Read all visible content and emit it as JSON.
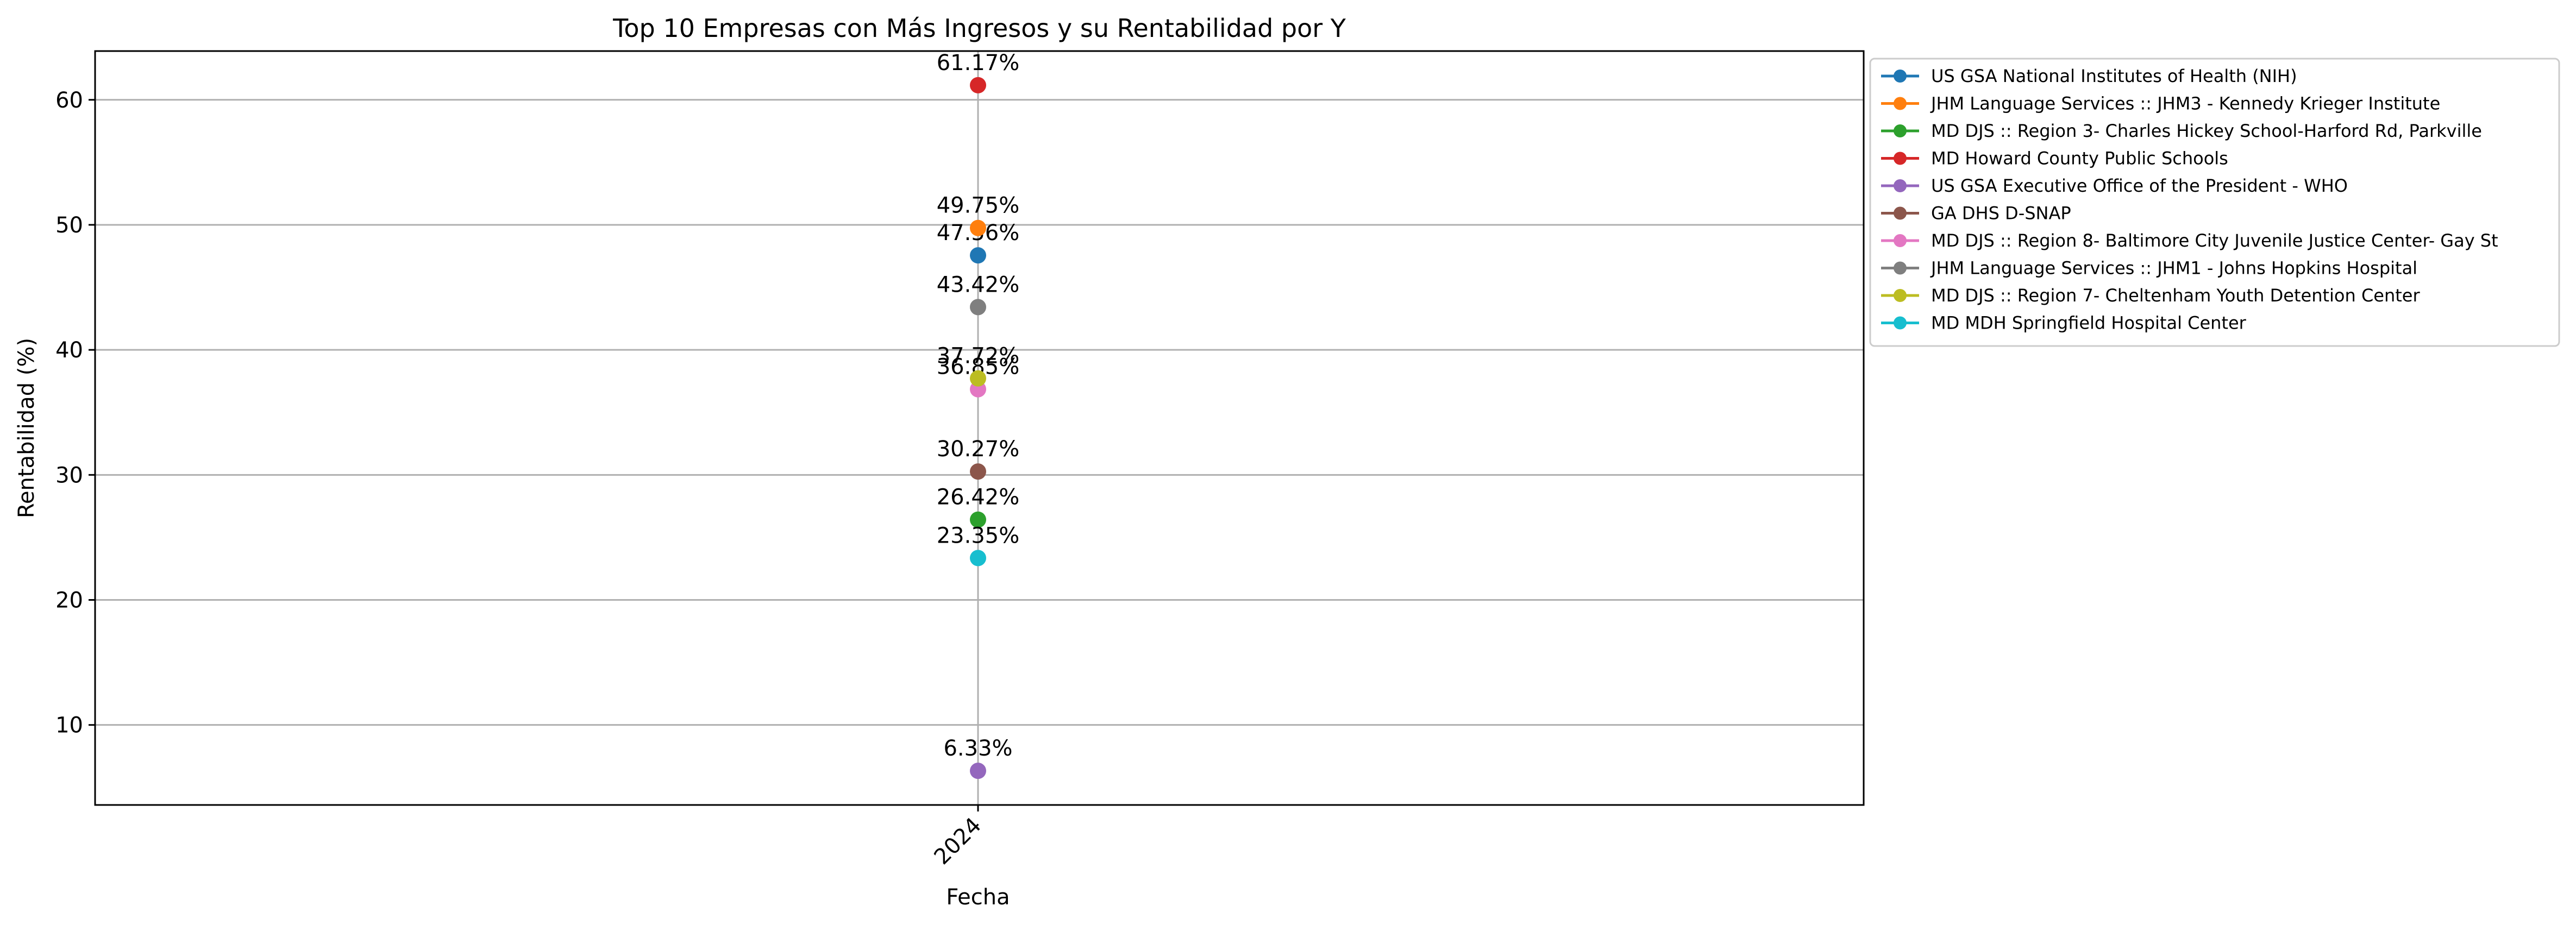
{
  "chart_data": {
    "type": "line",
    "title": "Top 10 Empresas con Más Ingresos y su Rentabilidad por Y",
    "xlabel": "Fecha",
    "ylabel": "Rentabilidad (%)",
    "categories": [
      "2024"
    ],
    "ylim": [
      3.6,
      63.9
    ],
    "yticks": [
      10,
      20,
      30,
      40,
      50,
      60
    ],
    "grid": true,
    "legend_position": "outside-top-right",
    "series": [
      {
        "name": "US GSA National Institutes of Health (NIH)",
        "values": [
          47.56
        ],
        "label": "47.56%",
        "color": "#1f77b4"
      },
      {
        "name": "JHM Language Services :: JHM3 - Kennedy Krieger Institute",
        "values": [
          49.75
        ],
        "label": "49.75%",
        "color": "#ff7f0e"
      },
      {
        "name": "MD DJS  :: Region 3- Charles Hickey School-Harford Rd, Parkville",
        "values": [
          26.42
        ],
        "label": "26.42%",
        "color": "#2ca02c"
      },
      {
        "name": "MD Howard County Public Schools",
        "values": [
          61.17
        ],
        "label": "61.17%",
        "color": "#d62728"
      },
      {
        "name": "US GSA Executive Office of the President - WHO",
        "values": [
          6.33
        ],
        "label": "6.33%",
        "color": "#9467bd"
      },
      {
        "name": "GA DHS D-SNAP",
        "values": [
          30.27
        ],
        "label": "30.27%",
        "color": "#8c564b"
      },
      {
        "name": "MD DJS  :: Region 8- Baltimore City Juvenile Justice Center- Gay St",
        "values": [
          36.85
        ],
        "label": "36.85%",
        "color": "#e377c2"
      },
      {
        "name": "JHM Language Services :: JHM1 - Johns Hopkins Hospital",
        "values": [
          43.42
        ],
        "label": "43.42%",
        "color": "#7f7f7f"
      },
      {
        "name": "MD DJS  :: Region 7- Cheltenham Youth Detention Center",
        "values": [
          37.72
        ],
        "label": "37.72%",
        "color": "#bcbd22"
      },
      {
        "name": "MD MDH Springfield Hospital Center",
        "values": [
          23.35
        ],
        "label": "23.35%",
        "color": "#17becf"
      }
    ]
  }
}
